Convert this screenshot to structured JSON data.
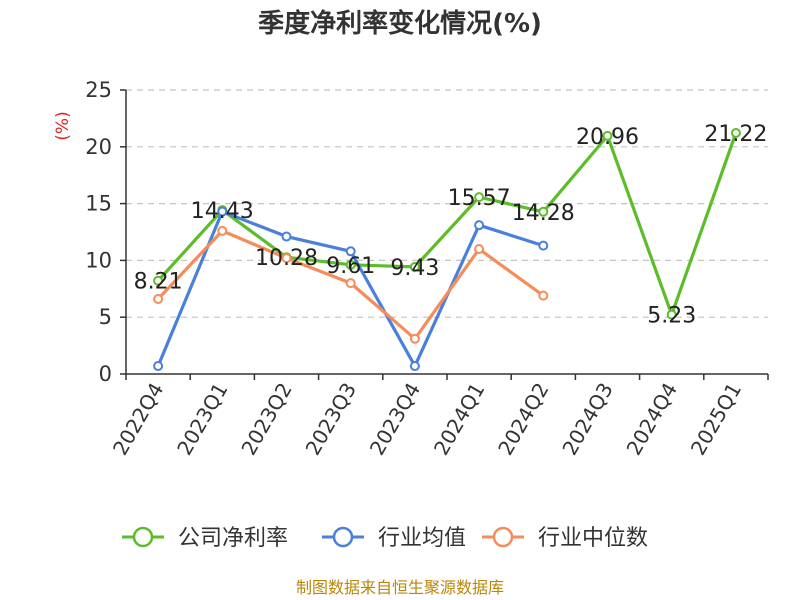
{
  "chart_data": {
    "type": "line",
    "title": "季度净利率变化情况(%)",
    "ylabel": "(%)",
    "xlabel": "",
    "ylim": [
      0,
      25
    ],
    "yticks": [
      0,
      5,
      10,
      15,
      20,
      25
    ],
    "grid": true,
    "legend_position": "bottom",
    "categories": [
      "2022Q4",
      "2023Q1",
      "2023Q2",
      "2023Q3",
      "2023Q4",
      "2024Q1",
      "2024Q2",
      "2024Q3",
      "2024Q4",
      "2025Q1"
    ],
    "series": [
      {
        "name": "公司净利率",
        "color": "#5cbd2a",
        "values": [
          8.21,
          14.43,
          10.28,
          9.61,
          9.43,
          15.57,
          14.28,
          20.96,
          5.23,
          21.22
        ],
        "labels": [
          "8.21",
          "14.43",
          "10.28",
          "9.61",
          "9.43",
          "15.57",
          "14.28",
          "20.96",
          "5.23",
          "21.22"
        ]
      },
      {
        "name": "行业均值",
        "color": "#4a7fdc",
        "values": [
          0.7,
          14.3,
          12.1,
          10.8,
          0.7,
          13.1,
          11.3,
          null,
          null,
          null
        ],
        "labels": []
      },
      {
        "name": "行业中位数",
        "color": "#f58c5a",
        "values": [
          6.6,
          12.6,
          10.2,
          8.0,
          3.1,
          11.0,
          6.9,
          null,
          null,
          null
        ],
        "labels": []
      }
    ]
  },
  "source_text": "制图数据来自恒生聚源数据库"
}
